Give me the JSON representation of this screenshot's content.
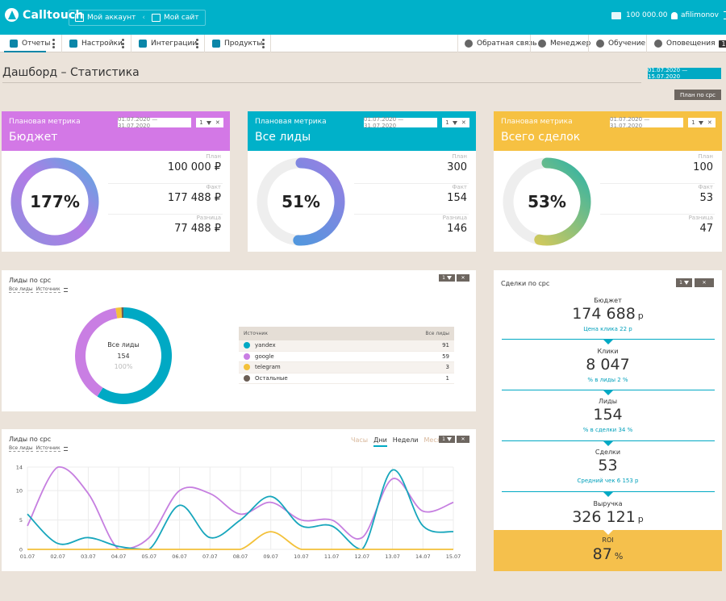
{
  "app": {
    "logo": "Calltouch"
  },
  "topbar": {
    "account_label": "Мой аккаунт",
    "site_label": "Мой сайт",
    "separator": "‹",
    "balance": "100 000.00",
    "user": "afilimonov"
  },
  "nav": {
    "items": [
      {
        "label": "Отчеты",
        "icon": "reports-icon"
      },
      {
        "label": "Настройки",
        "icon": "settings-icon"
      },
      {
        "label": "Интеграции",
        "icon": "integrations-icon"
      },
      {
        "label": "Продукты",
        "icon": "products-icon"
      }
    ],
    "right": [
      {
        "label": "Обратная связь",
        "icon": "feedback-icon"
      },
      {
        "label": "Менеджер",
        "icon": "manager-icon"
      },
      {
        "label": "Обучение",
        "icon": "education-icon"
      },
      {
        "label": "Оповещения",
        "icon": "notifications-icon",
        "badge": "1"
      }
    ]
  },
  "page": {
    "title": "Дашборд – Статистика",
    "date_range": "01.07.2020  —  15.07.2020",
    "plan_button": "План по cpc"
  },
  "metric_cards": [
    {
      "kicker": "Плановая метрика",
      "title": "Бюджет",
      "color": "#d378e6",
      "dates": "01.07.2020  —  31.07.2020",
      "filter_count": "1",
      "percent": "177%",
      "progress": 1.0,
      "gradient": [
        "#8f8fdf",
        "#b27be6",
        "#5fa6e1"
      ],
      "plan_label": "План",
      "plan": "100 000 ₽",
      "fact_label": "Факт",
      "fact": "177 488 ₽",
      "diff_label": "Разница",
      "diff": "77 488 ₽"
    },
    {
      "kicker": "Плановая метрика",
      "title": "Все лиды",
      "color": "#00b1c9",
      "dates": "01.07.2020  —  31.07.2020",
      "filter_count": "1",
      "percent": "51%",
      "progress": 0.51,
      "gradient": [
        "#3f9ddc",
        "#9a7fe3"
      ],
      "plan_label": "План",
      "plan": "300",
      "fact_label": "Факт",
      "fact": "154",
      "diff_label": "Разница",
      "diff": "146"
    },
    {
      "kicker": "Плановая метрика",
      "title": "Всего сделок",
      "color": "#f6c142",
      "dates": "01.07.2020  —  31.07.2020",
      "filter_count": "1",
      "percent": "53%",
      "progress": 0.53,
      "gradient": [
        "#f2cd4d",
        "#2eb3a6"
      ],
      "plan_label": "План",
      "plan": "100",
      "fact_label": "Факт",
      "fact": "53",
      "diff_label": "Разница",
      "diff": "47"
    }
  ],
  "leads_pie": {
    "title": "Лиды по срс",
    "filter_all": "Все лиды",
    "filter_source": "Источник",
    "filter_count": "1",
    "center_label": "Все лиды",
    "center_value": "154",
    "center_pct": "100%",
    "table_head_source": "Источник",
    "table_head_all": "Все лиды"
  },
  "leads_line": {
    "title": "Лиды по срс",
    "filter_all": "Все лиды",
    "filter_source": "Источник",
    "filter_count": "1",
    "tabs": [
      "Часы",
      "Дни",
      "Недели",
      "Месяцы"
    ],
    "active_tab": "Дни"
  },
  "deals": {
    "title": "Сделки по срс",
    "filter_count": "1",
    "stages": [
      {
        "label": "Бюджет",
        "value": "174 688",
        "currency": "р",
        "sub": "Цена клика 22 р"
      },
      {
        "label": "Клики",
        "value": "8 047",
        "currency": "",
        "sub": "% в лиды 2 %"
      },
      {
        "label": "Лиды",
        "value": "154",
        "currency": "",
        "sub": "% в сделки 34 %"
      },
      {
        "label": "Сделки",
        "value": "53",
        "currency": "",
        "sub": "Средний чек 6 153 р"
      },
      {
        "label": "Выручка",
        "value": "326 121",
        "currency": "р",
        "sub": ""
      }
    ],
    "roi": {
      "label": "ROI",
      "value": "87",
      "unit": "%"
    }
  },
  "chart_data": [
    {
      "type": "pie",
      "categories": [
        "yandex",
        "google",
        "telegram",
        "Остальные"
      ],
      "values": [
        91,
        59,
        3,
        1
      ],
      "colors": [
        "#00a9c4",
        "#c97ee3",
        "#f3c13a",
        "#6b5e55"
      ]
    },
    {
      "type": "line",
      "x": [
        "01.07",
        "02.07",
        "03.07",
        "04.07",
        "05.07",
        "06.07",
        "07.07",
        "08.07",
        "09.07",
        "10.07",
        "11.07",
        "12.07",
        "13.07",
        "14.07",
        "15.07"
      ],
      "ylim": [
        0,
        14
      ],
      "yticks": [
        0,
        5,
        10,
        14
      ],
      "grid": true,
      "series": [
        {
          "color": "#c67fe0",
          "values": [
            4,
            14,
            9.5,
            0,
            2,
            10,
            9.5,
            6,
            8,
            5,
            5,
            2,
            12,
            6.5,
            8
          ]
        },
        {
          "color": "#17a6bc",
          "values": [
            6,
            1,
            2,
            0.5,
            0,
            7.5,
            2,
            5,
            9,
            4,
            4,
            0,
            13.5,
            4,
            3
          ]
        },
        {
          "color": "#f3c13a",
          "values": [
            0,
            0,
            0,
            0,
            0,
            0,
            0,
            0,
            3,
            0,
            0,
            0,
            0,
            0,
            0
          ]
        }
      ]
    }
  ]
}
